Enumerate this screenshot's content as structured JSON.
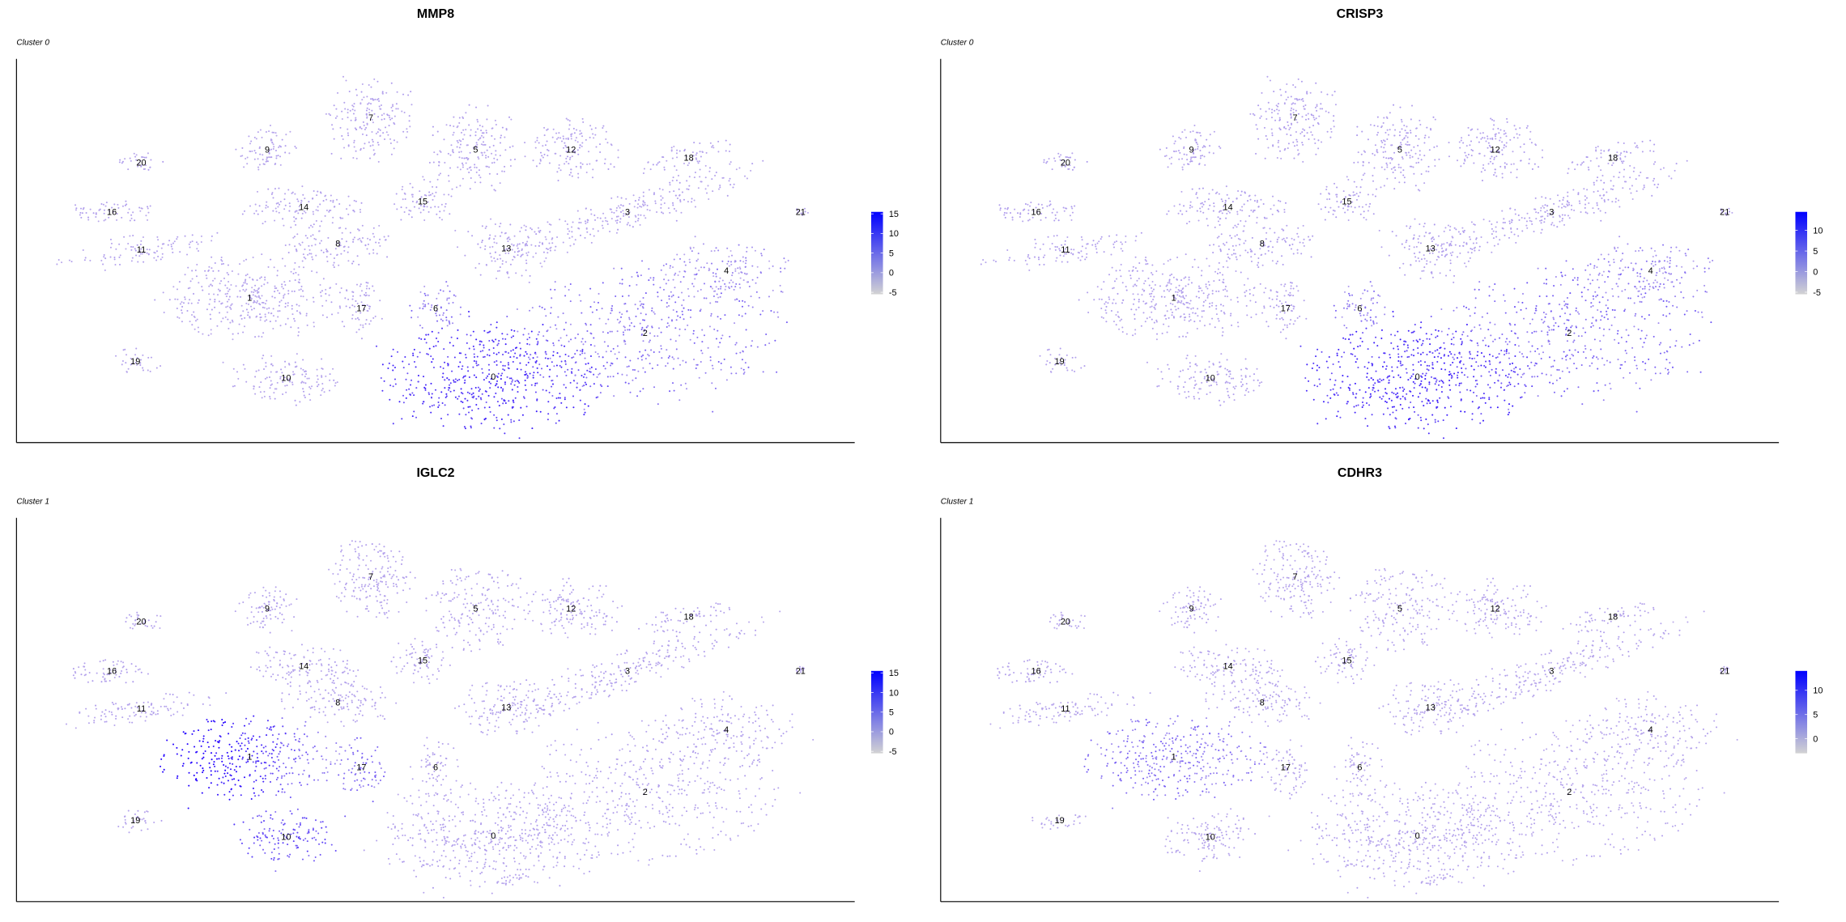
{
  "chart_data": [
    {
      "type": "scatter",
      "title": "MMP8",
      "subtitle": "Cluster 0",
      "colorbar": {
        "ticks": [
          "15",
          "10",
          "5",
          "0",
          "-5"
        ],
        "low_color": "#d3d3d3",
        "high_color": "#0000ff"
      },
      "cluster_labels": [
        "0",
        "1",
        "2",
        "3",
        "4",
        "5",
        "6",
        "7",
        "8",
        "9",
        "10",
        "11",
        "12",
        "13",
        "14",
        "15",
        "16",
        "17",
        "18",
        "19",
        "20",
        "21"
      ],
      "expression_level": {
        "0": 0.7,
        "2": 0.35,
        "4": 0.2,
        "6": 0.3,
        "default": 0.1
      }
    },
    {
      "type": "scatter",
      "title": "CRISP3",
      "subtitle": "Cluster 0",
      "colorbar": {
        "ticks": [
          "10",
          "5",
          "0",
          "-5"
        ],
        "low_color": "#d3d3d3",
        "high_color": "#0000ff"
      },
      "cluster_labels": [
        "0",
        "1",
        "2",
        "3",
        "4",
        "5",
        "6",
        "7",
        "8",
        "9",
        "10",
        "11",
        "12",
        "13",
        "14",
        "15",
        "16",
        "17",
        "18",
        "19",
        "20",
        "21"
      ],
      "expression_level": {
        "0": 0.72,
        "2": 0.4,
        "4": 0.25,
        "6": 0.3,
        "default": 0.12
      }
    },
    {
      "type": "scatter",
      "title": "IGLC2",
      "subtitle": "Cluster 1",
      "colorbar": {
        "ticks": [
          "15",
          "10",
          "5",
          "0",
          "-5"
        ],
        "low_color": "#d3d3d3",
        "high_color": "#0000ff"
      },
      "cluster_labels": [
        "0",
        "1",
        "2",
        "3",
        "4",
        "5",
        "6",
        "7",
        "8",
        "9",
        "10",
        "11",
        "12",
        "13",
        "14",
        "15",
        "16",
        "17",
        "18",
        "19",
        "20",
        "21"
      ],
      "expression_level": {
        "1": 0.75,
        "10": 0.55,
        "17": 0.4,
        "default": 0.1
      }
    },
    {
      "type": "scatter",
      "title": "CDHR3",
      "subtitle": "Cluster 1",
      "colorbar": {
        "ticks": [
          "10",
          "5",
          "0"
        ],
        "low_color": "#d3d3d3",
        "high_color": "#0000ff"
      },
      "cluster_labels": [
        "0",
        "1",
        "2",
        "3",
        "4",
        "5",
        "6",
        "7",
        "8",
        "9",
        "10",
        "11",
        "12",
        "13",
        "14",
        "15",
        "16",
        "17",
        "18",
        "19",
        "20",
        "21"
      ],
      "expression_level": {
        "1": 0.35,
        "default": 0.08
      }
    }
  ]
}
